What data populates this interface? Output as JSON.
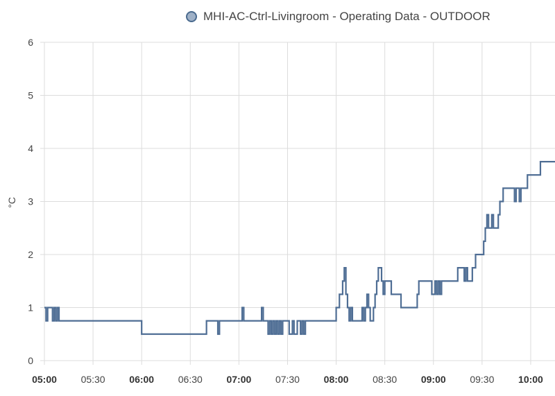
{
  "legend": {
    "label": "MHI-AC-Ctrl-Livingroom - Operating Data - OUTDOOR",
    "color": "#4e6d94"
  },
  "chart_data": {
    "type": "line",
    "step": true,
    "ylabel": "°C",
    "ylim": [
      0,
      6
    ],
    "y_ticks": [
      "0",
      "1",
      "2",
      "3",
      "4",
      "5",
      "6"
    ],
    "xlim": [
      "05:00",
      "10:15"
    ],
    "x_ticks": [
      {
        "label": "05:00",
        "bold": true
      },
      {
        "label": "05:30",
        "bold": false
      },
      {
        "label": "06:00",
        "bold": true
      },
      {
        "label": "06:30",
        "bold": false
      },
      {
        "label": "07:00",
        "bold": true
      },
      {
        "label": "07:30",
        "bold": false
      },
      {
        "label": "08:00",
        "bold": true
      },
      {
        "label": "08:30",
        "bold": false
      },
      {
        "label": "09:00",
        "bold": true
      },
      {
        "label": "09:30",
        "bold": false
      },
      {
        "label": "10:00",
        "bold": true
      }
    ],
    "grid": true,
    "legend_position": "top-right",
    "series": [
      {
        "name": "MHI-AC-Ctrl-Livingroom - Operating Data - OUTDOOR",
        "color": "#4e6d94",
        "x": [
          "05:00",
          "05:01",
          "05:02",
          "05:05",
          "05:06",
          "05:07",
          "05:08",
          "05:09",
          "05:10",
          "06:00",
          "06:01",
          "06:40",
          "06:47",
          "06:48",
          "07:02",
          "07:03",
          "07:14",
          "07:15",
          "07:18",
          "07:19",
          "07:20",
          "07:21",
          "07:22",
          "07:23",
          "07:24",
          "07:25",
          "07:26",
          "07:27",
          "07:30",
          "07:31",
          "07:33",
          "07:34",
          "07:36",
          "07:37",
          "07:38",
          "07:39",
          "07:40",
          "07:41",
          "07:42",
          "08:00",
          "08:02",
          "08:04",
          "08:05",
          "08:06",
          "08:07",
          "08:08",
          "08:09",
          "08:10",
          "08:16",
          "08:17",
          "08:18",
          "08:19",
          "08:20",
          "08:21",
          "08:23",
          "08:24",
          "08:25",
          "08:26",
          "08:28",
          "08:29",
          "08:30",
          "08:31",
          "08:32",
          "08:34",
          "08:40",
          "08:50",
          "08:51",
          "08:53",
          "08:59",
          "09:01",
          "09:02",
          "09:03",
          "09:04",
          "09:05",
          "09:06",
          "09:15",
          "09:19",
          "09:20",
          "09:21",
          "09:22",
          "09:24",
          "09:26",
          "09:31",
          "09:32",
          "09:33",
          "09:34",
          "09:36",
          "09:37",
          "09:40",
          "09:41",
          "09:42",
          "09:43",
          "09:45",
          "09:50",
          "09:51",
          "09:53",
          "09:54",
          "09:58",
          "10:05",
          "10:06",
          "10:08",
          "10:10",
          "10:13",
          "10:15"
        ],
        "values": [
          1,
          0.75,
          1,
          0.75,
          1,
          0.75,
          1,
          0.75,
          0.75,
          0.5,
          0.5,
          0.75,
          0.5,
          0.75,
          1,
          0.75,
          1,
          0.75,
          0.5,
          0.75,
          0.5,
          0.75,
          0.5,
          0.75,
          0.5,
          0.75,
          0.5,
          0.75,
          0.75,
          0.5,
          0.75,
          0.5,
          0.75,
          0.75,
          0.5,
          0.75,
          0.5,
          0.75,
          0.75,
          1,
          1.25,
          1.5,
          1.75,
          1.25,
          1,
          0.75,
          1,
          0.75,
          1,
          0.75,
          1,
          1.25,
          1,
          0.75,
          1,
          1.25,
          1.5,
          1.75,
          1.5,
          1.25,
          1.5,
          1.5,
          1.5,
          1.25,
          1,
          1.25,
          1.5,
          1.5,
          1.25,
          1.5,
          1.25,
          1.5,
          1.25,
          1.5,
          1.5,
          1.75,
          1.5,
          1.75,
          1.5,
          1.5,
          1.75,
          2,
          2.25,
          2.5,
          2.75,
          2.5,
          2.75,
          2.5,
          2.75,
          3,
          3,
          3.25,
          3.25,
          3,
          3.25,
          3,
          3.25,
          3.5,
          3.5,
          3.75,
          3.75,
          3.75,
          3.75,
          3.75
        ]
      }
    ]
  }
}
